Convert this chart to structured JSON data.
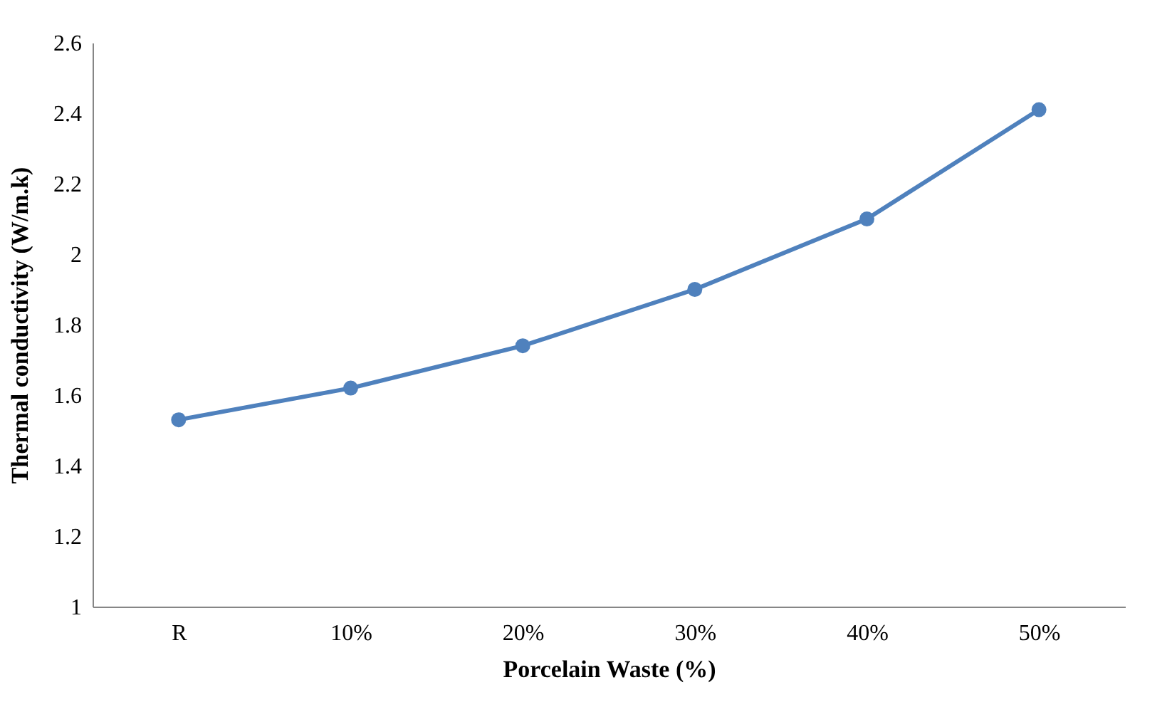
{
  "chart_data": {
    "type": "line",
    "xlabel": "Porcelain Waste (%)",
    "ylabel": "Thermal  conductivity (W/m.k)",
    "categories": [
      "R",
      "10%",
      "20%",
      "30%",
      "40%",
      "50%"
    ],
    "series": [
      {
        "color": "#4f81bd",
        "values": [
          1.53,
          1.62,
          1.74,
          1.9,
          2.1,
          2.41
        ]
      }
    ],
    "ylim": [
      1,
      2.6
    ],
    "yticks": [
      1,
      1.2,
      1.4,
      1.6,
      1.8,
      2,
      2.2,
      2.4,
      2.6
    ],
    "grid": false,
    "legend": false,
    "marker": "circle",
    "line_style": "solid"
  }
}
